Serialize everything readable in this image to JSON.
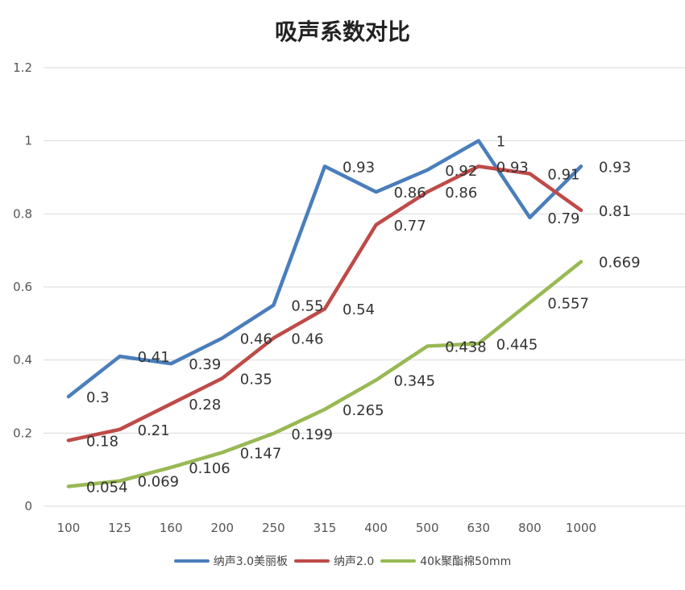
{
  "chart_data": {
    "type": "line",
    "title": "吸声系数对比",
    "xlabel": "",
    "ylabel": "",
    "categories": [
      "100",
      "125",
      "160",
      "200",
      "250",
      "315",
      "400",
      "500",
      "630",
      "800",
      "1000"
    ],
    "ylim": [
      0,
      1.2
    ],
    "yticks": [
      "0",
      "0.2",
      "0.4",
      "0.6",
      "0.8",
      "1",
      "1.2"
    ],
    "grid": true,
    "legend_position": "bottom",
    "series": [
      {
        "name": "纳声3.0美丽板",
        "color": "#4a7ebb",
        "values": [
          0.3,
          0.41,
          0.39,
          0.46,
          0.55,
          0.93,
          0.86,
          0.92,
          1,
          0.79,
          0.93
        ],
        "labels": [
          "0.3",
          "0.41",
          "0.39",
          "0.46",
          "0.55",
          "0.93",
          "0.86",
          "0.92",
          "1",
          "0.79",
          "0.93"
        ]
      },
      {
        "name": "纳声2.0",
        "color": "#be4b48",
        "values": [
          0.18,
          0.21,
          0.28,
          0.35,
          0.46,
          0.54,
          0.77,
          0.86,
          0.93,
          0.91,
          0.81
        ],
        "labels": [
          "0.18",
          "0.21",
          "0.28",
          "0.35",
          "0.46",
          "0.54",
          "0.77",
          "0.86",
          "0.93",
          "0.91",
          "0.81"
        ]
      },
      {
        "name": "40k聚酯棉50mm",
        "color": "#98b954",
        "values": [
          0.054,
          0.069,
          0.106,
          0.147,
          0.199,
          0.265,
          0.345,
          0.438,
          0.445,
          0.557,
          0.669
        ],
        "labels": [
          "0.054",
          "0.069",
          "0.106",
          "0.147",
          "0.199",
          "0.265",
          "0.345",
          "0.438",
          "0.445",
          "0.557",
          "0.669"
        ]
      }
    ]
  }
}
